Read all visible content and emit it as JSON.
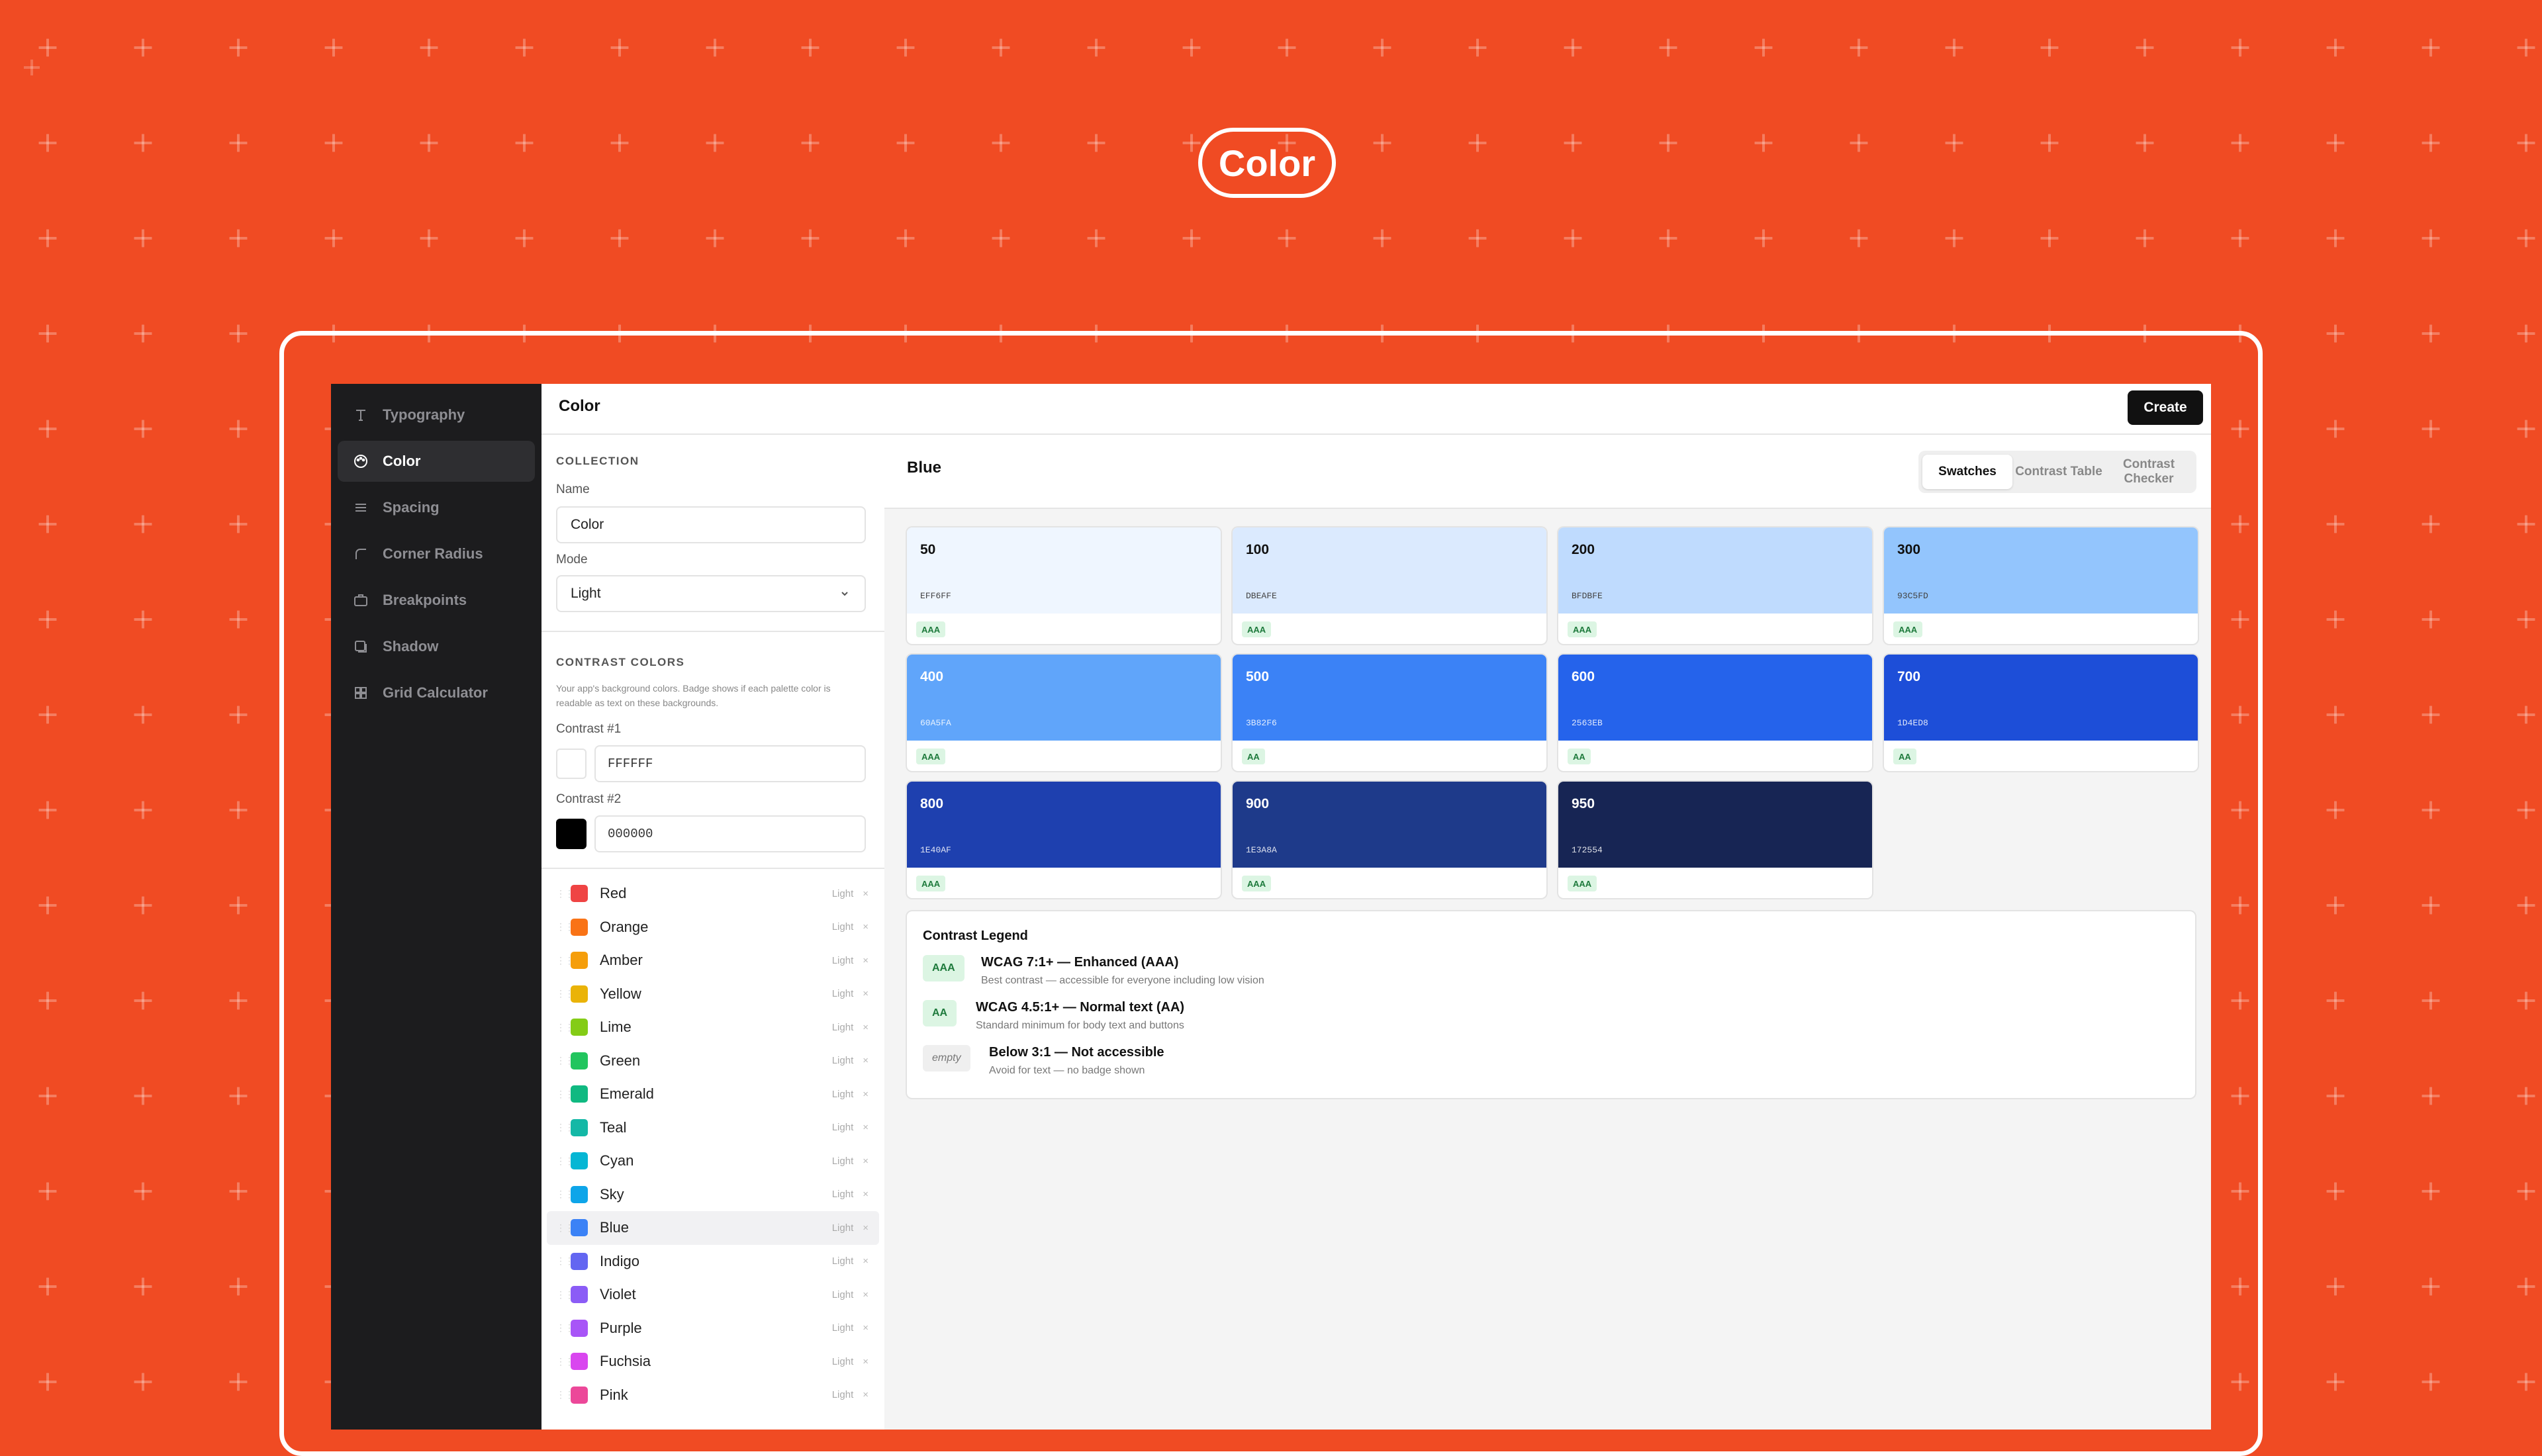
{
  "page_title": "Color",
  "sidebar": {
    "items": [
      {
        "label": "Typography",
        "icon": "type-icon"
      },
      {
        "label": "Color",
        "icon": "palette-icon"
      },
      {
        "label": "Spacing",
        "icon": "spacing-icon"
      },
      {
        "label": "Corner Radius",
        "icon": "corner-icon"
      },
      {
        "label": "Breakpoints",
        "icon": "breakpoints-icon"
      },
      {
        "label": "Shadow",
        "icon": "shadow-icon"
      },
      {
        "label": "Grid Calculator",
        "icon": "grid-icon"
      }
    ],
    "active": "Color"
  },
  "topbar": {
    "title": "Color",
    "create_label": "Create"
  },
  "collection": {
    "section_label": "COLLECTION",
    "name_label": "Name",
    "name_value": "Color",
    "mode_label": "Mode",
    "mode_value": "Light"
  },
  "contrast": {
    "section_label": "CONTRAST COLORS",
    "help": "Your app's background colors. Badge shows if each palette color is readable as text on these backgrounds.",
    "c1_label": "Contrast #1",
    "c1_value": "FFFFFF",
    "c1_color": "#FFFFFF",
    "c2_label": "Contrast #2",
    "c2_value": "000000",
    "c2_color": "#000000"
  },
  "palettes": [
    {
      "name": "Red",
      "color": "#EF4444",
      "mode": "Light"
    },
    {
      "name": "Orange",
      "color": "#F97316",
      "mode": "Light"
    },
    {
      "name": "Amber",
      "color": "#F59E0B",
      "mode": "Light"
    },
    {
      "name": "Yellow",
      "color": "#EAB308",
      "mode": "Light"
    },
    {
      "name": "Lime",
      "color": "#84CC16",
      "mode": "Light"
    },
    {
      "name": "Green",
      "color": "#22C55E",
      "mode": "Light"
    },
    {
      "name": "Emerald",
      "color": "#10B981",
      "mode": "Light"
    },
    {
      "name": "Teal",
      "color": "#14B8A6",
      "mode": "Light"
    },
    {
      "name": "Cyan",
      "color": "#06B6D4",
      "mode": "Light"
    },
    {
      "name": "Sky",
      "color": "#0EA5E9",
      "mode": "Light"
    },
    {
      "name": "Blue",
      "color": "#3B82F6",
      "mode": "Light"
    },
    {
      "name": "Indigo",
      "color": "#6366F1",
      "mode": "Light"
    },
    {
      "name": "Violet",
      "color": "#8B5CF6",
      "mode": "Light"
    },
    {
      "name": "Purple",
      "color": "#A855F7",
      "mode": "Light"
    },
    {
      "name": "Fuchsia",
      "color": "#D946EF",
      "mode": "Light"
    },
    {
      "name": "Pink",
      "color": "#EC4899",
      "mode": "Light"
    }
  ],
  "selected_palette": "Blue",
  "main": {
    "title": "Blue",
    "tabs": [
      {
        "label": "Swatches",
        "active": true
      },
      {
        "label": "Contrast Table",
        "active": false
      },
      {
        "label": "Contrast Checker",
        "active": false
      }
    ]
  },
  "swatches": [
    {
      "step": "50",
      "hex": "EFF6FF",
      "badge": "AAA",
      "dark_text": true
    },
    {
      "step": "100",
      "hex": "DBEAFE",
      "badge": "AAA",
      "dark_text": true
    },
    {
      "step": "200",
      "hex": "BFDBFE",
      "badge": "AAA",
      "dark_text": true
    },
    {
      "step": "300",
      "hex": "93C5FD",
      "badge": "AAA",
      "dark_text": true
    },
    {
      "step": "400",
      "hex": "60A5FA",
      "badge": "AAA",
      "dark_text": false
    },
    {
      "step": "500",
      "hex": "3B82F6",
      "badge": "AA",
      "dark_text": false
    },
    {
      "step": "600",
      "hex": "2563EB",
      "badge": "AA",
      "dark_text": false
    },
    {
      "step": "700",
      "hex": "1D4ED8",
      "badge": "AA",
      "dark_text": false
    },
    {
      "step": "800",
      "hex": "1E40AF",
      "badge": "AAA",
      "dark_text": false
    },
    {
      "step": "900",
      "hex": "1E3A8A",
      "badge": "AAA",
      "dark_text": false
    },
    {
      "step": "950",
      "hex": "172554",
      "badge": "AAA",
      "dark_text": false
    }
  ],
  "legend": {
    "title": "Contrast Legend",
    "items": [
      {
        "badge": "AAA",
        "heading": "WCAG 7:1+ — Enhanced (AAA)",
        "desc": "Best contrast — accessible for everyone including low vision",
        "kind": "ok"
      },
      {
        "badge": "AA",
        "heading": "WCAG 4.5:1+ — Normal text (AA)",
        "desc": "Standard minimum for body text and buttons",
        "kind": "ok"
      },
      {
        "badge": "empty",
        "heading": "Below 3:1 — Not accessible",
        "desc": "Avoid for text — no badge shown",
        "kind": "empty"
      }
    ]
  },
  "colors": {
    "background": "#F04B23",
    "sidebar": "#1C1C1E",
    "accent_badge": "#DCF5E3"
  }
}
